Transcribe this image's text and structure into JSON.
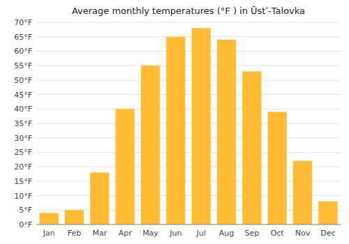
{
  "chart_data": {
    "type": "bar",
    "title": "Average monthly temperatures (°F ) in Ūstʹ‑Talovka",
    "categories": [
      "Jan",
      "Feb",
      "Mar",
      "Apr",
      "May",
      "Jun",
      "Jul",
      "Aug",
      "Sep",
      "Oct",
      "Nov",
      "Dec"
    ],
    "values": [
      4,
      5,
      18,
      40,
      55,
      65,
      68,
      64,
      53,
      39,
      22,
      8
    ],
    "color": "#FFBB33",
    "ylim": [
      0,
      70
    ],
    "yticks": [
      {
        "value": 0,
        "label": "0°F"
      },
      {
        "value": 5,
        "label": "5°F"
      },
      {
        "value": 10,
        "label": "10°F"
      },
      {
        "value": 15,
        "label": "15°F"
      },
      {
        "value": 20,
        "label": "20°F"
      },
      {
        "value": 25,
        "label": "25°F"
      },
      {
        "value": 30,
        "label": "30°F"
      },
      {
        "value": 35,
        "label": "35°F"
      },
      {
        "value": 40,
        "label": "40°F"
      },
      {
        "value": 45,
        "label": "45°F"
      },
      {
        "value": 50,
        "label": "50°F"
      },
      {
        "value": 55,
        "label": "55°F"
      },
      {
        "value": 60,
        "label": "60°F"
      },
      {
        "value": 65,
        "label": "65°F"
      },
      {
        "value": 70,
        "label": "70°F"
      }
    ],
    "grid": true
  }
}
